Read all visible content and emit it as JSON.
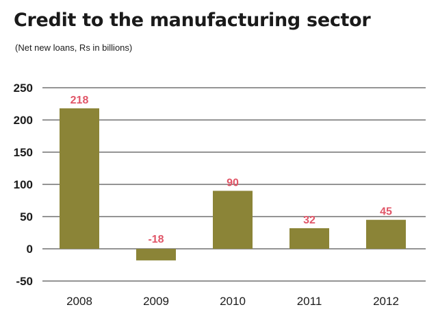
{
  "chart_data": {
    "type": "bar",
    "title": "Credit to the manufacturing sector",
    "subtitle": "(Net new loans, Rs in billions)",
    "categories": [
      "2008",
      "2009",
      "2010",
      "2011",
      "2012"
    ],
    "values": [
      218,
      -18,
      90,
      32,
      45
    ],
    "data_labels": [
      "218",
      "-18",
      "90",
      "32",
      "45"
    ],
    "yticks": [
      -50,
      0,
      50,
      100,
      150,
      200,
      250
    ],
    "ytick_labels": [
      "-50",
      "0",
      "50",
      "100",
      "150",
      "200",
      "250"
    ],
    "ylim": [
      -50,
      250
    ],
    "xlabel": "",
    "ylabel": "",
    "grid": true,
    "bar_color": "#8b8437",
    "label_color": "#e05567",
    "grid_color": "#555555"
  }
}
